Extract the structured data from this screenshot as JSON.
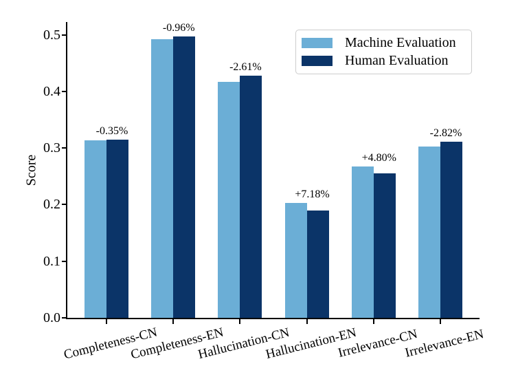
{
  "chart_data": {
    "type": "bar",
    "title": "",
    "xlabel": "",
    "ylabel": "Score",
    "categories": [
      "Completeness-CN",
      "Completeness-EN",
      "Hallucination-CN",
      "Hallucination-EN",
      "Irrelevance-CN",
      "Irrelevance-EN"
    ],
    "series": [
      {
        "name": "Machine Evaluation",
        "color": "#6BAED6",
        "values": [
          0.3139,
          0.4925,
          0.4167,
          0.2026,
          0.2679,
          0.3022
        ]
      },
      {
        "name": "Human Evaluation",
        "color": "#0B3468",
        "values": [
          0.315,
          0.4973,
          0.4279,
          0.189,
          0.2556,
          0.311
        ]
      }
    ],
    "bar_labels": [
      "-0.35%",
      "-0.96%",
      "-2.61%",
      "+7.18%",
      "+4.80%",
      "-2.82%"
    ],
    "y_ticks": [
      "0.0",
      "0.1",
      "0.2",
      "0.3",
      "0.4",
      "0.5"
    ],
    "ylim": [
      0,
      0.52
    ],
    "grid": false,
    "legend_position": "upper right"
  }
}
